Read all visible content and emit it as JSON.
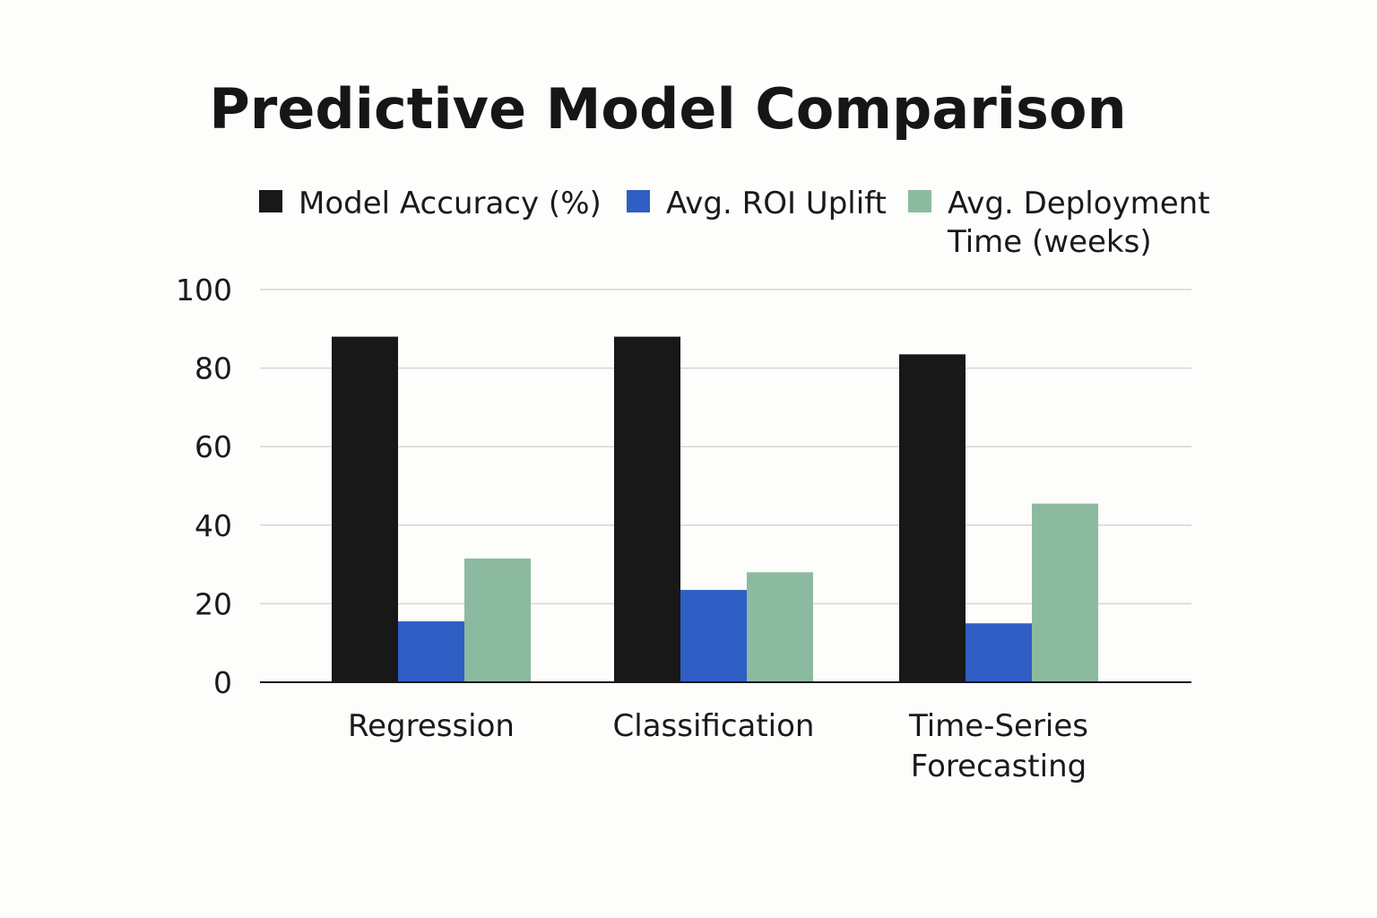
{
  "chart_data": {
    "type": "bar",
    "title": "Predictive Model Comparison",
    "xlabel": "",
    "ylabel": "",
    "ylim": [
      0,
      100
    ],
    "yticks": [
      0,
      20,
      40,
      60,
      80,
      100
    ],
    "grid": true,
    "legend_position": "top",
    "categories": [
      [
        "Regression"
      ],
      [
        "Classification"
      ],
      [
        "Time-Series",
        "Forecasting"
      ]
    ],
    "series": [
      {
        "name": [
          "Model Accuracy (%)"
        ],
        "color": "#181818",
        "values": [
          88,
          88,
          83.5
        ]
      },
      {
        "name": [
          "Avg. ROI Uplift"
        ],
        "color": "#2f5ec4",
        "values": [
          15.5,
          23.5,
          15
        ]
      },
      {
        "name": [
          "Avg. Deployment",
          "Time (weeks)"
        ],
        "color": "#8cbaa0",
        "values": [
          31.5,
          28,
          45.5
        ]
      }
    ]
  }
}
